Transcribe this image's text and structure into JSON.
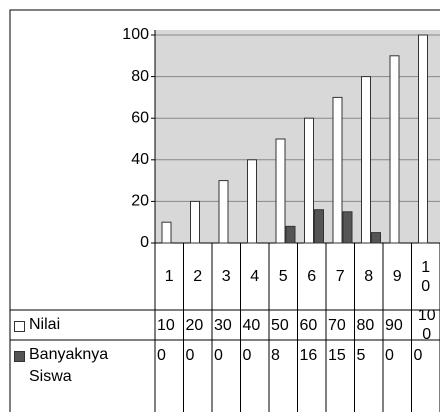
{
  "chart_data": {
    "type": "bar",
    "categories": [
      "1",
      "2",
      "3",
      "4",
      "5",
      "6",
      "7",
      "8",
      "9",
      "10"
    ],
    "series": [
      {
        "name": "Nilai",
        "color": "#ffffff",
        "values": [
          10,
          20,
          30,
          40,
          50,
          60,
          70,
          80,
          90,
          100
        ]
      },
      {
        "name": "Banyaknya Siswa",
        "color": "#555555",
        "values": [
          0,
          0,
          0,
          0,
          8,
          16,
          15,
          5,
          0,
          0
        ]
      }
    ],
    "ylim": [
      0,
      100
    ],
    "yticks": [
      0,
      20,
      40,
      60,
      80,
      100
    ],
    "grid": true
  }
}
